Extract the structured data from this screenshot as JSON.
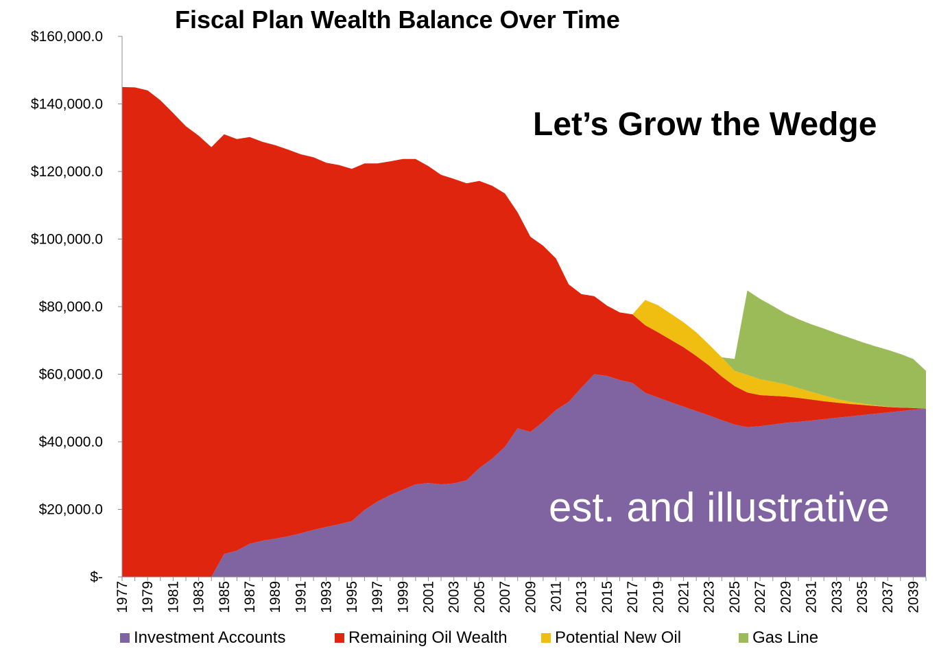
{
  "chart_data": {
    "type": "area",
    "stacked": true,
    "title": "Fiscal Plan Wealth Balance Over Time",
    "annotations": [
      "Let’s Grow the Wedge",
      "est. and illustrative"
    ],
    "years": [
      1977,
      1978,
      1979,
      1980,
      1981,
      1982,
      1983,
      1984,
      1985,
      1986,
      1987,
      1988,
      1989,
      1990,
      1991,
      1992,
      1993,
      1994,
      1995,
      1996,
      1997,
      1998,
      1999,
      2000,
      2001,
      2002,
      2003,
      2004,
      2005,
      2006,
      2007,
      2008,
      2009,
      2010,
      2011,
      2012,
      2013,
      2014,
      2015,
      2016,
      2017,
      2018,
      2019,
      2020,
      2021,
      2022,
      2023,
      2024,
      2025,
      2026,
      2027,
      2028,
      2029,
      2030,
      2031,
      2032,
      2033,
      2034,
      2035,
      2036,
      2037,
      2038,
      2039,
      2040
    ],
    "x_tick_labels": [
      "1977",
      "1979",
      "1981",
      "1983",
      "1985",
      "1987",
      "1989",
      "1991",
      "1993",
      "1995",
      "1997",
      "1999",
      "2001",
      "2003",
      "2005",
      "2007",
      "2009",
      "2011",
      "2013",
      "2015",
      "2017",
      "2019",
      "2021",
      "2023",
      "2025",
      "2027",
      "2029",
      "2031",
      "2033",
      "2035",
      "2037",
      "2039"
    ],
    "y_tick_labels": [
      "$-",
      "$20,000.0",
      "$40,000.0",
      "$60,000.0",
      "$80,000.0",
      "$100,000.0",
      "$120,000.0",
      "$140,000.0",
      "$160,000.0"
    ],
    "ylim": [
      0,
      160000
    ],
    "series": [
      {
        "name": "Investment Accounts",
        "color": "#8064a2",
        "values": [
          0,
          0,
          0,
          0,
          0,
          0,
          0,
          0,
          6800,
          7800,
          9800,
          10700,
          11300,
          12000,
          12900,
          13900,
          14800,
          15600,
          16500,
          19800,
          22300,
          24200,
          25800,
          27400,
          27800,
          27400,
          27700,
          28600,
          32200,
          35000,
          38500,
          44000,
          42900,
          45900,
          49400,
          51800,
          56000,
          60000,
          59500,
          58300,
          57400,
          54500,
          53100,
          51700,
          50400,
          49100,
          47800,
          46400,
          45100,
          44300,
          44600,
          45100,
          45600,
          45900,
          46300,
          46700,
          47100,
          47500,
          47900,
          48300,
          48700,
          49100,
          49500,
          49800
        ]
      },
      {
        "name": "Remaining Oil Wealth",
        "color": "#e0250f",
        "values": [
          145000,
          144900,
          144000,
          141100,
          137300,
          133400,
          130600,
          127200,
          124200,
          121800,
          120400,
          118100,
          116500,
          114500,
          112200,
          110300,
          107800,
          106300,
          104300,
          102600,
          100100,
          98800,
          97900,
          96300,
          93800,
          91600,
          90100,
          87900,
          85000,
          80800,
          75000,
          63900,
          57800,
          52100,
          44900,
          34800,
          27700,
          23100,
          20800,
          20000,
          20300,
          20000,
          19300,
          18500,
          17600,
          16300,
          14800,
          12900,
          11400,
          10300,
          9200,
          8500,
          7800,
          7100,
          6200,
          5300,
          4500,
          3700,
          3000,
          2300,
          1600,
          1000,
          500,
          0
        ]
      },
      {
        "name": "Potential New Oil",
        "color": "#f0be10",
        "values": [
          0,
          0,
          0,
          0,
          0,
          0,
          0,
          0,
          0,
          0,
          0,
          0,
          0,
          0,
          0,
          0,
          0,
          0,
          0,
          0,
          0,
          0,
          0,
          0,
          0,
          0,
          0,
          0,
          0,
          0,
          0,
          0,
          0,
          0,
          0,
          0,
          0,
          0,
          0,
          0,
          0,
          7500,
          8000,
          7700,
          7400,
          7000,
          6200,
          5700,
          4500,
          5200,
          4700,
          4200,
          3600,
          2900,
          2300,
          1700,
          1100,
          700,
          400,
          200,
          100,
          0,
          0,
          0
        ]
      },
      {
        "name": "Gas Line",
        "color": "#9bbb59",
        "values": [
          0,
          0,
          0,
          0,
          0,
          0,
          0,
          0,
          0,
          0,
          0,
          0,
          0,
          0,
          0,
          0,
          0,
          0,
          0,
          0,
          0,
          0,
          0,
          0,
          0,
          0,
          0,
          0,
          0,
          0,
          0,
          0,
          0,
          0,
          0,
          0,
          0,
          0,
          0,
          0,
          0,
          0,
          0,
          0,
          0,
          0,
          0,
          0,
          3500,
          25000,
          23800,
          22400,
          21000,
          20400,
          20000,
          19800,
          19400,
          18900,
          18200,
          17500,
          16800,
          15900,
          14500,
          11200
        ]
      }
    ],
    "legend_position": "bottom",
    "grid": false
  }
}
